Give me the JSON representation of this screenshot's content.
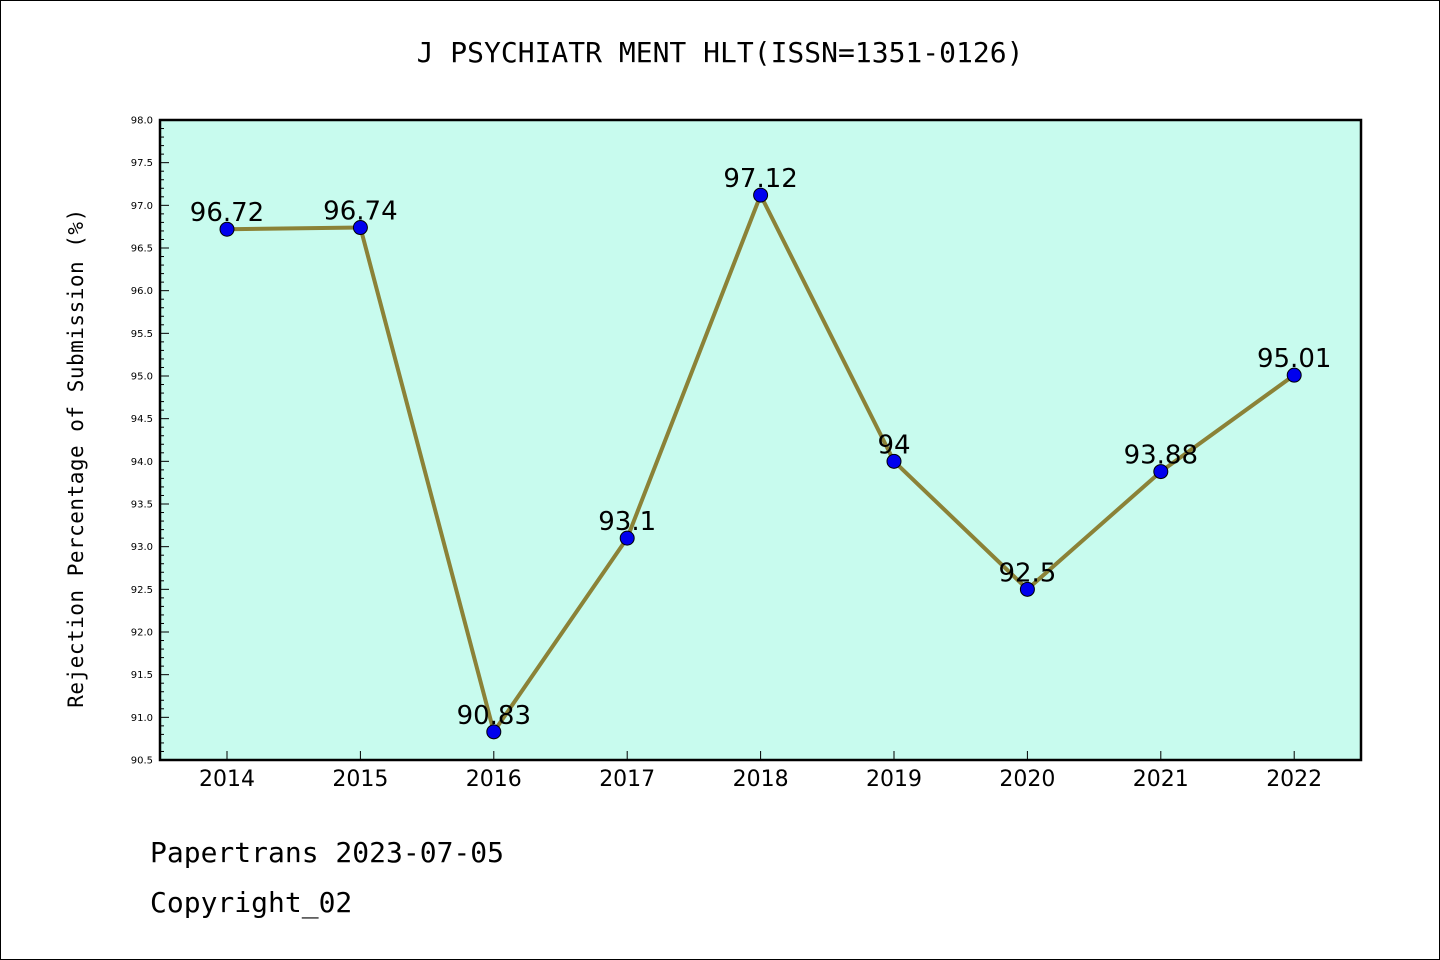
{
  "chart_data": {
    "type": "line",
    "title": "J PSYCHIATR MENT HLT(ISSN=1351-0126)",
    "xlabel": "",
    "ylabel": "Rejection Percentage of Submission (%)",
    "categories": [
      "2014",
      "2015",
      "2016",
      "2017",
      "2018",
      "2019",
      "2020",
      "2021",
      "2022"
    ],
    "values": [
      96.72,
      96.74,
      90.83,
      93.1,
      97.12,
      94,
      92.5,
      93.88,
      95.01
    ],
    "data_labels": [
      "96.72",
      "96.74",
      "90.83",
      "93.1",
      "97.12",
      "94",
      "92.5",
      "93.88",
      "95.01"
    ],
    "ylim": [
      90.5,
      98.0
    ],
    "yticks": [
      "90.5",
      "91.0",
      "91.5",
      "92.0",
      "92.5",
      "93.0",
      "93.5",
      "94.0",
      "94.5",
      "95.0",
      "95.5",
      "96.0",
      "96.5",
      "97.0",
      "97.5",
      "98.0"
    ],
    "grid": false,
    "colors": {
      "plot_background": "#c8fbee",
      "line": "#8b8237",
      "marker": "#0000ee"
    }
  },
  "footer": {
    "source": "Papertrans 2023-07-05",
    "copyright": "Copyright_02"
  }
}
